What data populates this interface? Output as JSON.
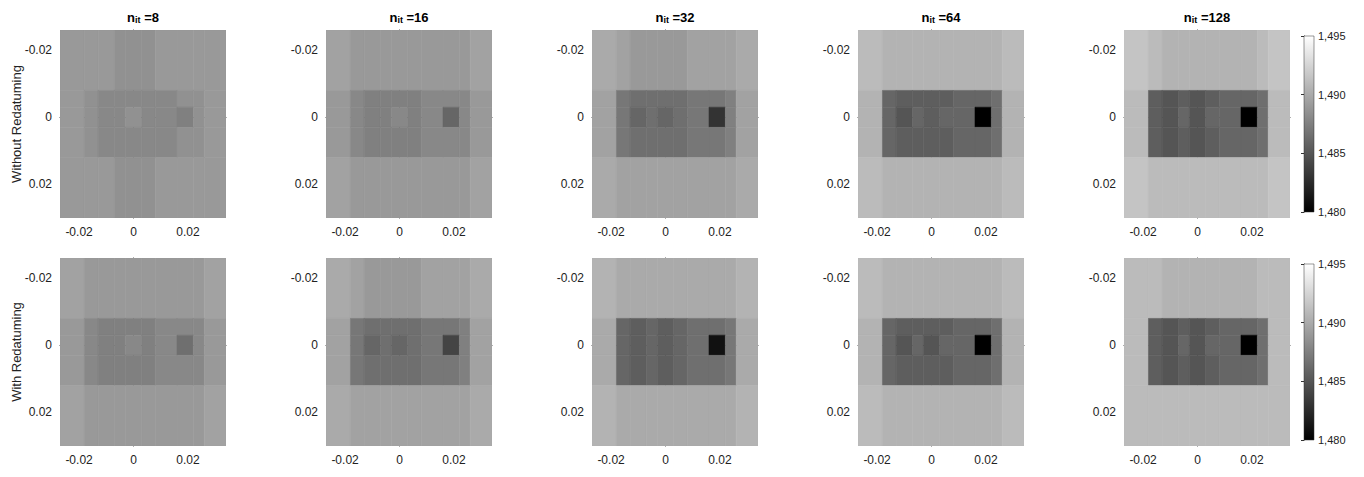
{
  "chart_data": {
    "type": "heatmap",
    "column_titles": [
      {
        "main": "n",
        "sub": "it",
        "rest": " =8"
      },
      {
        "main": "n",
        "sub": "it",
        "rest": " =16"
      },
      {
        "main": "n",
        "sub": "it",
        "rest": " =32"
      },
      {
        "main": "n",
        "sub": "it",
        "rest": " =64"
      },
      {
        "main": "n",
        "sub": "it",
        "rest": " =128"
      }
    ],
    "xlim": [
      -0.027,
      0.034
    ],
    "ylim": [
      -0.026,
      0.03
    ],
    "xticks": [
      -0.02,
      0,
      0.02
    ],
    "yticks": [
      -0.02,
      0,
      0.02
    ],
    "x_edges": [
      -0.027,
      -0.018,
      -0.013,
      -0.007,
      -0.003,
      0.003,
      0.008,
      0.016,
      0.022,
      0.026,
      0.034
    ],
    "y_edges": [
      -0.026,
      -0.008,
      -0.003,
      0.003,
      0.012,
      0.03
    ],
    "colorbar": {
      "range": [
        1480,
        1495
      ],
      "ticks": [
        1480,
        1485,
        1490,
        1495
      ],
      "colors": [
        "#000000",
        "#ffffff"
      ]
    },
    "rows": [
      {
        "label": "Without Redatuming",
        "panels": [
          {
            "cells": [
              [
                1489,
                1489,
                1489,
                1488.5,
                1488.5,
                1488.5,
                1489,
                1489,
                1489,
                1489
              ],
              [
                1489,
                1488.5,
                1488,
                1488,
                1488,
                1488,
                1488,
                1488.5,
                1488.5,
                1489
              ],
              [
                1489,
                1488.5,
                1488,
                1488,
                1488.5,
                1488,
                1488,
                1487.5,
                1488.5,
                1489
              ],
              [
                1489,
                1488.5,
                1488,
                1488,
                1488,
                1488,
                1488,
                1488.5,
                1488.5,
                1489
              ],
              [
                1489,
                1489,
                1489,
                1488.5,
                1488.5,
                1488.5,
                1489,
                1489,
                1489,
                1489
              ]
            ]
          },
          {
            "cells": [
              [
                1489.5,
                1489,
                1489,
                1489,
                1489,
                1489,
                1489,
                1489,
                1489,
                1489.5
              ],
              [
                1489,
                1488,
                1487.5,
                1487.5,
                1487.5,
                1487.5,
                1488,
                1488,
                1488,
                1489
              ],
              [
                1489,
                1488,
                1487.5,
                1487.5,
                1488,
                1487.5,
                1488,
                1486,
                1488,
                1489
              ],
              [
                1489,
                1488,
                1487.5,
                1487.5,
                1487.5,
                1487.5,
                1488,
                1488,
                1488,
                1489
              ],
              [
                1489.5,
                1489,
                1489,
                1489,
                1489,
                1489,
                1489,
                1489,
                1489,
                1489.5
              ]
            ]
          },
          {
            "cells": [
              [
                1490,
                1489.5,
                1489,
                1489,
                1489,
                1489,
                1489.5,
                1489.5,
                1489.5,
                1490
              ],
              [
                1489.5,
                1487,
                1486.5,
                1486.5,
                1486.5,
                1486.5,
                1487,
                1487,
                1487.5,
                1489.5
              ],
              [
                1489.5,
                1487,
                1486,
                1486.5,
                1486,
                1486.5,
                1487,
                1483,
                1487.5,
                1489.5
              ],
              [
                1489.5,
                1487,
                1486.5,
                1486.5,
                1486.5,
                1486.5,
                1487,
                1487,
                1487.5,
                1489.5
              ],
              [
                1490,
                1489.5,
                1489.5,
                1489.5,
                1489.5,
                1489.5,
                1489.5,
                1489.5,
                1489.5,
                1490
              ]
            ]
          },
          {
            "cells": [
              [
                1491,
                1490.5,
                1490.5,
                1490.5,
                1490.5,
                1490.5,
                1490.5,
                1490.5,
                1490.5,
                1491
              ],
              [
                1490.5,
                1486,
                1485.5,
                1485.5,
                1485.5,
                1485.5,
                1486,
                1486,
                1486.5,
                1490.5
              ],
              [
                1490.5,
                1486,
                1485,
                1486,
                1485.5,
                1486,
                1486,
                1480,
                1486.5,
                1490.5
              ],
              [
                1490.5,
                1486,
                1485.5,
                1485.5,
                1485.5,
                1485.5,
                1486,
                1486,
                1486.5,
                1490.5
              ],
              [
                1491,
                1490.5,
                1490.5,
                1490.5,
                1490.5,
                1490.5,
                1490.5,
                1490.5,
                1490.5,
                1491
              ]
            ]
          },
          {
            "cells": [
              [
                1491.5,
                1491,
                1490.5,
                1490.5,
                1490.5,
                1490.5,
                1490.5,
                1490.5,
                1491,
                1491.5
              ],
              [
                1491,
                1485.5,
                1485,
                1485.5,
                1485,
                1485.5,
                1486,
                1486,
                1486.5,
                1491
              ],
              [
                1491,
                1485.5,
                1485,
                1486,
                1485,
                1486,
                1486,
                1480,
                1486.5,
                1491
              ],
              [
                1491,
                1485.5,
                1485,
                1485.5,
                1485,
                1485.5,
                1486,
                1486,
                1486.5,
                1491
              ],
              [
                1491.5,
                1491,
                1491,
                1491,
                1491,
                1491,
                1491,
                1491,
                1491,
                1491.5
              ]
            ]
          }
        ]
      },
      {
        "label": "With Redatuming",
        "panels": [
          {
            "cells": [
              [
                1489.5,
                1489,
                1489,
                1489,
                1489,
                1489,
                1489,
                1489,
                1489,
                1489.5
              ],
              [
                1489,
                1488,
                1487.5,
                1487.5,
                1487.5,
                1487.5,
                1488,
                1488,
                1488,
                1489
              ],
              [
                1489,
                1488,
                1487.5,
                1487.5,
                1488,
                1487.5,
                1488,
                1486.5,
                1488,
                1489
              ],
              [
                1489,
                1488,
                1487.5,
                1487.5,
                1487.5,
                1487.5,
                1488,
                1488,
                1488,
                1489
              ],
              [
                1489.5,
                1489,
                1489,
                1489,
                1489,
                1489,
                1489,
                1489,
                1489,
                1489.5
              ]
            ]
          },
          {
            "cells": [
              [
                1490,
                1489.5,
                1489,
                1489,
                1489,
                1489,
                1489.5,
                1489.5,
                1489.5,
                1490
              ],
              [
                1489.5,
                1487,
                1486.5,
                1486.5,
                1486.5,
                1486.5,
                1487,
                1487,
                1487.5,
                1489.5
              ],
              [
                1489.5,
                1487,
                1486,
                1486.5,
                1486,
                1486.5,
                1487,
                1484,
                1487.5,
                1489.5
              ],
              [
                1489.5,
                1487,
                1486.5,
                1486.5,
                1486.5,
                1486.5,
                1487,
                1487,
                1487.5,
                1489.5
              ],
              [
                1490,
                1489.5,
                1489.5,
                1489.5,
                1489.5,
                1489.5,
                1489.5,
                1489.5,
                1489.5,
                1490
              ]
            ]
          },
          {
            "cells": [
              [
                1490.5,
                1490,
                1490,
                1490,
                1490,
                1490,
                1490,
                1490,
                1490,
                1490.5
              ],
              [
                1490,
                1486,
                1485.5,
                1486,
                1485.5,
                1486,
                1486.5,
                1486.5,
                1487,
                1490
              ],
              [
                1490,
                1486,
                1485.5,
                1486,
                1485.5,
                1486,
                1486.5,
                1481,
                1487,
                1490
              ],
              [
                1490,
                1486,
                1485.5,
                1486,
                1485.5,
                1486,
                1486.5,
                1486.5,
                1487,
                1490
              ],
              [
                1490.5,
                1490,
                1490,
                1490,
                1490,
                1490,
                1490,
                1490,
                1490,
                1490.5
              ]
            ]
          },
          {
            "cells": [
              [
                1491,
                1490.5,
                1490.5,
                1490.5,
                1490.5,
                1490.5,
                1490.5,
                1490.5,
                1490.5,
                1491
              ],
              [
                1490.5,
                1486,
                1485.5,
                1485.5,
                1485.5,
                1485.5,
                1486,
                1486,
                1486.5,
                1490.5
              ],
              [
                1490.5,
                1486,
                1485,
                1486,
                1485,
                1486,
                1486,
                1480,
                1486.5,
                1490.5
              ],
              [
                1490.5,
                1486,
                1485.5,
                1485.5,
                1485.5,
                1485.5,
                1486,
                1486,
                1486.5,
                1490.5
              ],
              [
                1491,
                1490.5,
                1490.5,
                1490.5,
                1490.5,
                1490.5,
                1490.5,
                1490.5,
                1490.5,
                1491
              ]
            ]
          },
          {
            "cells": [
              [
                1491,
                1491,
                1490.5,
                1490.5,
                1490.5,
                1490.5,
                1490.5,
                1490.5,
                1491,
                1491
              ],
              [
                1491,
                1485.5,
                1485,
                1485.5,
                1485,
                1485.5,
                1486,
                1486,
                1486.5,
                1491
              ],
              [
                1491,
                1485.5,
                1485,
                1486,
                1485,
                1486,
                1486,
                1480,
                1486.5,
                1491
              ],
              [
                1491,
                1485.5,
                1485,
                1485.5,
                1485,
                1485.5,
                1486,
                1486,
                1486.5,
                1491
              ],
              [
                1491,
                1491,
                1491,
                1491,
                1491,
                1491,
                1491,
                1491,
                1491,
                1491
              ]
            ]
          }
        ]
      }
    ]
  }
}
